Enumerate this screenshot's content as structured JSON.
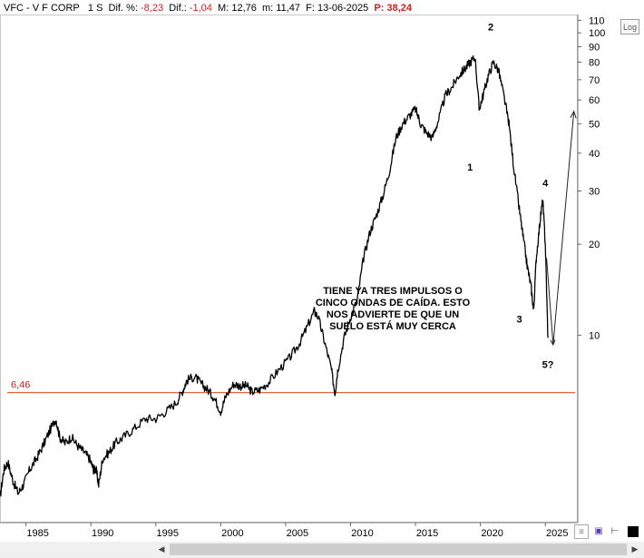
{
  "header": {
    "ticker": "VFC - V F CORP",
    "period": "1 S",
    "dif_pct_label": "Dif. %:",
    "dif_pct_value": "-8,23",
    "dif_label": "Dif.:",
    "dif_value": "-1,04",
    "max_label": "M:",
    "max_value": "12,76",
    "min_label": "m:",
    "min_value": "11,47",
    "date_label": "F:",
    "date_value": "13-06-2025",
    "p_label": "P:",
    "p_value": "38,24"
  },
  "log_button": "Log",
  "colors": {
    "price": "#000000",
    "support": "#d9521e",
    "label": "#d02020"
  },
  "chart_data": {
    "type": "line",
    "yscale": "log",
    "ylim": [
      2.4,
      115
    ],
    "xlim": [
      1983,
      2027.5
    ],
    "x_ticks": [
      "1985",
      "1990",
      "1995",
      "2000",
      "2005",
      "2010",
      "2015",
      "2020",
      "2025"
    ],
    "y_ticks": [
      "110",
      "100",
      "90",
      "80",
      "70",
      "60",
      "50",
      "40",
      "30",
      "20",
      "10"
    ],
    "support_line": {
      "value": 6.46,
      "label": "6,46"
    },
    "series": [
      {
        "points": [
          [
            1983.0,
            2.9
          ],
          [
            1983.3,
            3.6
          ],
          [
            1983.6,
            3.8
          ],
          [
            1984.0,
            3.3
          ],
          [
            1984.4,
            3.0
          ],
          [
            1984.8,
            3.2
          ],
          [
            1985.3,
            3.6
          ],
          [
            1985.8,
            3.9
          ],
          [
            1986.3,
            4.3
          ],
          [
            1986.8,
            4.8
          ],
          [
            1987.3,
            5.3
          ],
          [
            1987.6,
            4.6
          ],
          [
            1988.0,
            4.4
          ],
          [
            1988.5,
            4.6
          ],
          [
            1989.0,
            4.3
          ],
          [
            1989.5,
            4.1
          ],
          [
            1989.9,
            3.9
          ],
          [
            1990.2,
            3.6
          ],
          [
            1990.4,
            3.6
          ],
          [
            1990.6,
            3.2
          ],
          [
            1990.9,
            3.9
          ],
          [
            1991.4,
            4.1
          ],
          [
            1991.9,
            4.4
          ],
          [
            1992.5,
            4.6
          ],
          [
            1993.3,
            4.9
          ],
          [
            1994.2,
            5.3
          ],
          [
            1995.0,
            5.3
          ],
          [
            1995.8,
            5.6
          ],
          [
            1996.6,
            6.0
          ],
          [
            1997.1,
            6.6
          ],
          [
            1997.4,
            7.1
          ],
          [
            1998.0,
            7.3
          ],
          [
            1998.5,
            6.9
          ],
          [
            1999.0,
            6.6
          ],
          [
            1999.5,
            6.2
          ],
          [
            2000.0,
            5.6
          ],
          [
            2000.4,
            6.3
          ],
          [
            2001.0,
            6.9
          ],
          [
            2001.5,
            6.8
          ],
          [
            2002.0,
            6.8
          ],
          [
            2002.4,
            6.5
          ],
          [
            2003.0,
            6.6
          ],
          [
            2003.7,
            7.0
          ],
          [
            2004.5,
            7.7
          ],
          [
            2005.3,
            8.4
          ],
          [
            2006.0,
            9.3
          ],
          [
            2006.6,
            10.5
          ],
          [
            2007.2,
            12.0
          ],
          [
            2007.5,
            11.5
          ],
          [
            2008.0,
            9.5
          ],
          [
            2008.5,
            7.8
          ],
          [
            2008.8,
            6.4
          ],
          [
            2009.0,
            7.6
          ],
          [
            2009.5,
            9.8
          ],
          [
            2010.0,
            11.5
          ],
          [
            2010.5,
            13.0
          ],
          [
            2011.0,
            18.0
          ],
          [
            2011.5,
            22.0
          ],
          [
            2012.0,
            25.0
          ],
          [
            2012.5,
            29.0
          ],
          [
            2013.0,
            35.0
          ],
          [
            2013.5,
            45.0
          ],
          [
            2014.0,
            50.0
          ],
          [
            2014.5,
            53.0
          ],
          [
            2015.0,
            56.0
          ],
          [
            2015.4,
            50.0
          ],
          [
            2015.8,
            47.0
          ],
          [
            2016.3,
            45.0
          ],
          [
            2016.8,
            52.0
          ],
          [
            2017.3,
            62.0
          ],
          [
            2017.8,
            66.0
          ],
          [
            2018.3,
            72.0
          ],
          [
            2018.8,
            76.0
          ],
          [
            2019.2,
            80.0
          ],
          [
            2019.6,
            83.0
          ],
          [
            2019.9,
            56.0
          ],
          [
            2020.2,
            62.0
          ],
          [
            2020.6,
            72.0
          ],
          [
            2021.0,
            80.0
          ],
          [
            2021.4,
            75.0
          ],
          [
            2021.8,
            62.0
          ],
          [
            2022.2,
            50.0
          ],
          [
            2022.6,
            35.0
          ],
          [
            2023.0,
            26.0
          ],
          [
            2023.3,
            21.0
          ],
          [
            2023.6,
            17.0
          ],
          [
            2023.9,
            14.5
          ],
          [
            2024.1,
            12.0
          ],
          [
            2024.3,
            18.0
          ],
          [
            2024.6,
            24.0
          ],
          [
            2024.8,
            28.0
          ],
          [
            2025.0,
            20.0
          ],
          [
            2025.2,
            9.8
          ]
        ]
      }
    ],
    "projection": [
      [
        2025.1,
        18.0
      ],
      [
        2025.6,
        9.3
      ],
      [
        2027.2,
        55.0
      ]
    ],
    "wave_labels": [
      {
        "text": "1",
        "x": 2019.2,
        "y": 35.0
      },
      {
        "text": "2",
        "x": 2020.8,
        "y": 102.0
      },
      {
        "text": "3",
        "x": 2023.0,
        "y": 11.0
      },
      {
        "text": "4",
        "x": 2025.0,
        "y": 31.0
      },
      {
        "text": "5?",
        "x": 2025.2,
        "y": 7.8
      }
    ],
    "annotation": {
      "lines": [
        "TIENE YA TRES IMPULSOS O",
        "CINCO ONDAS DE CAÍDA. ESTO",
        "NOS ADVIERTE DE QUE UN",
        "SUELO ESTÁ MUY CERCA"
      ]
    }
  }
}
